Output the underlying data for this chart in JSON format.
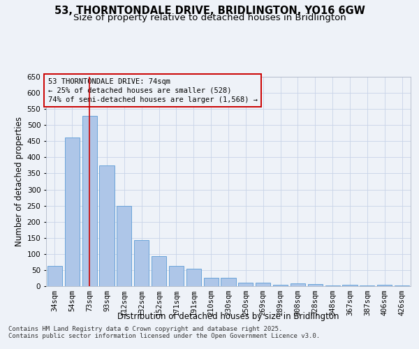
{
  "title_line1": "53, THORNTONDALE DRIVE, BRIDLINGTON, YO16 6GW",
  "title_line2": "Size of property relative to detached houses in Bridlington",
  "xlabel": "Distribution of detached houses by size in Bridlington",
  "ylabel": "Number of detached properties",
  "categories": [
    "34sqm",
    "54sqm",
    "73sqm",
    "93sqm",
    "112sqm",
    "132sqm",
    "152sqm",
    "171sqm",
    "191sqm",
    "210sqm",
    "230sqm",
    "250sqm",
    "269sqm",
    "289sqm",
    "308sqm",
    "328sqm",
    "348sqm",
    "367sqm",
    "387sqm",
    "406sqm",
    "426sqm"
  ],
  "values": [
    62,
    462,
    528,
    375,
    250,
    142,
    93,
    63,
    55,
    25,
    25,
    10,
    10,
    5,
    8,
    7,
    3,
    5,
    3,
    4,
    3
  ],
  "bar_color": "#aec6e8",
  "bar_edge_color": "#5b9bd5",
  "vline_x_index": 2,
  "vline_color": "#cc0000",
  "ylim": [
    0,
    650
  ],
  "yticks": [
    0,
    50,
    100,
    150,
    200,
    250,
    300,
    350,
    400,
    450,
    500,
    550,
    600,
    650
  ],
  "annotation_box_text": "53 THORNTONDALE DRIVE: 74sqm\n← 25% of detached houses are smaller (528)\n74% of semi-detached houses are larger (1,568) →",
  "annotation_box_color": "#cc0000",
  "background_color": "#eef2f8",
  "footer_line1": "Contains HM Land Registry data © Crown copyright and database right 2025.",
  "footer_line2": "Contains public sector information licensed under the Open Government Licence v3.0.",
  "grid_color": "#c8d4e8",
  "title_fontsize": 10.5,
  "subtitle_fontsize": 9.5,
  "axis_label_fontsize": 8.5,
  "tick_fontsize": 7.5,
  "annotation_fontsize": 7.5,
  "footer_fontsize": 6.5
}
